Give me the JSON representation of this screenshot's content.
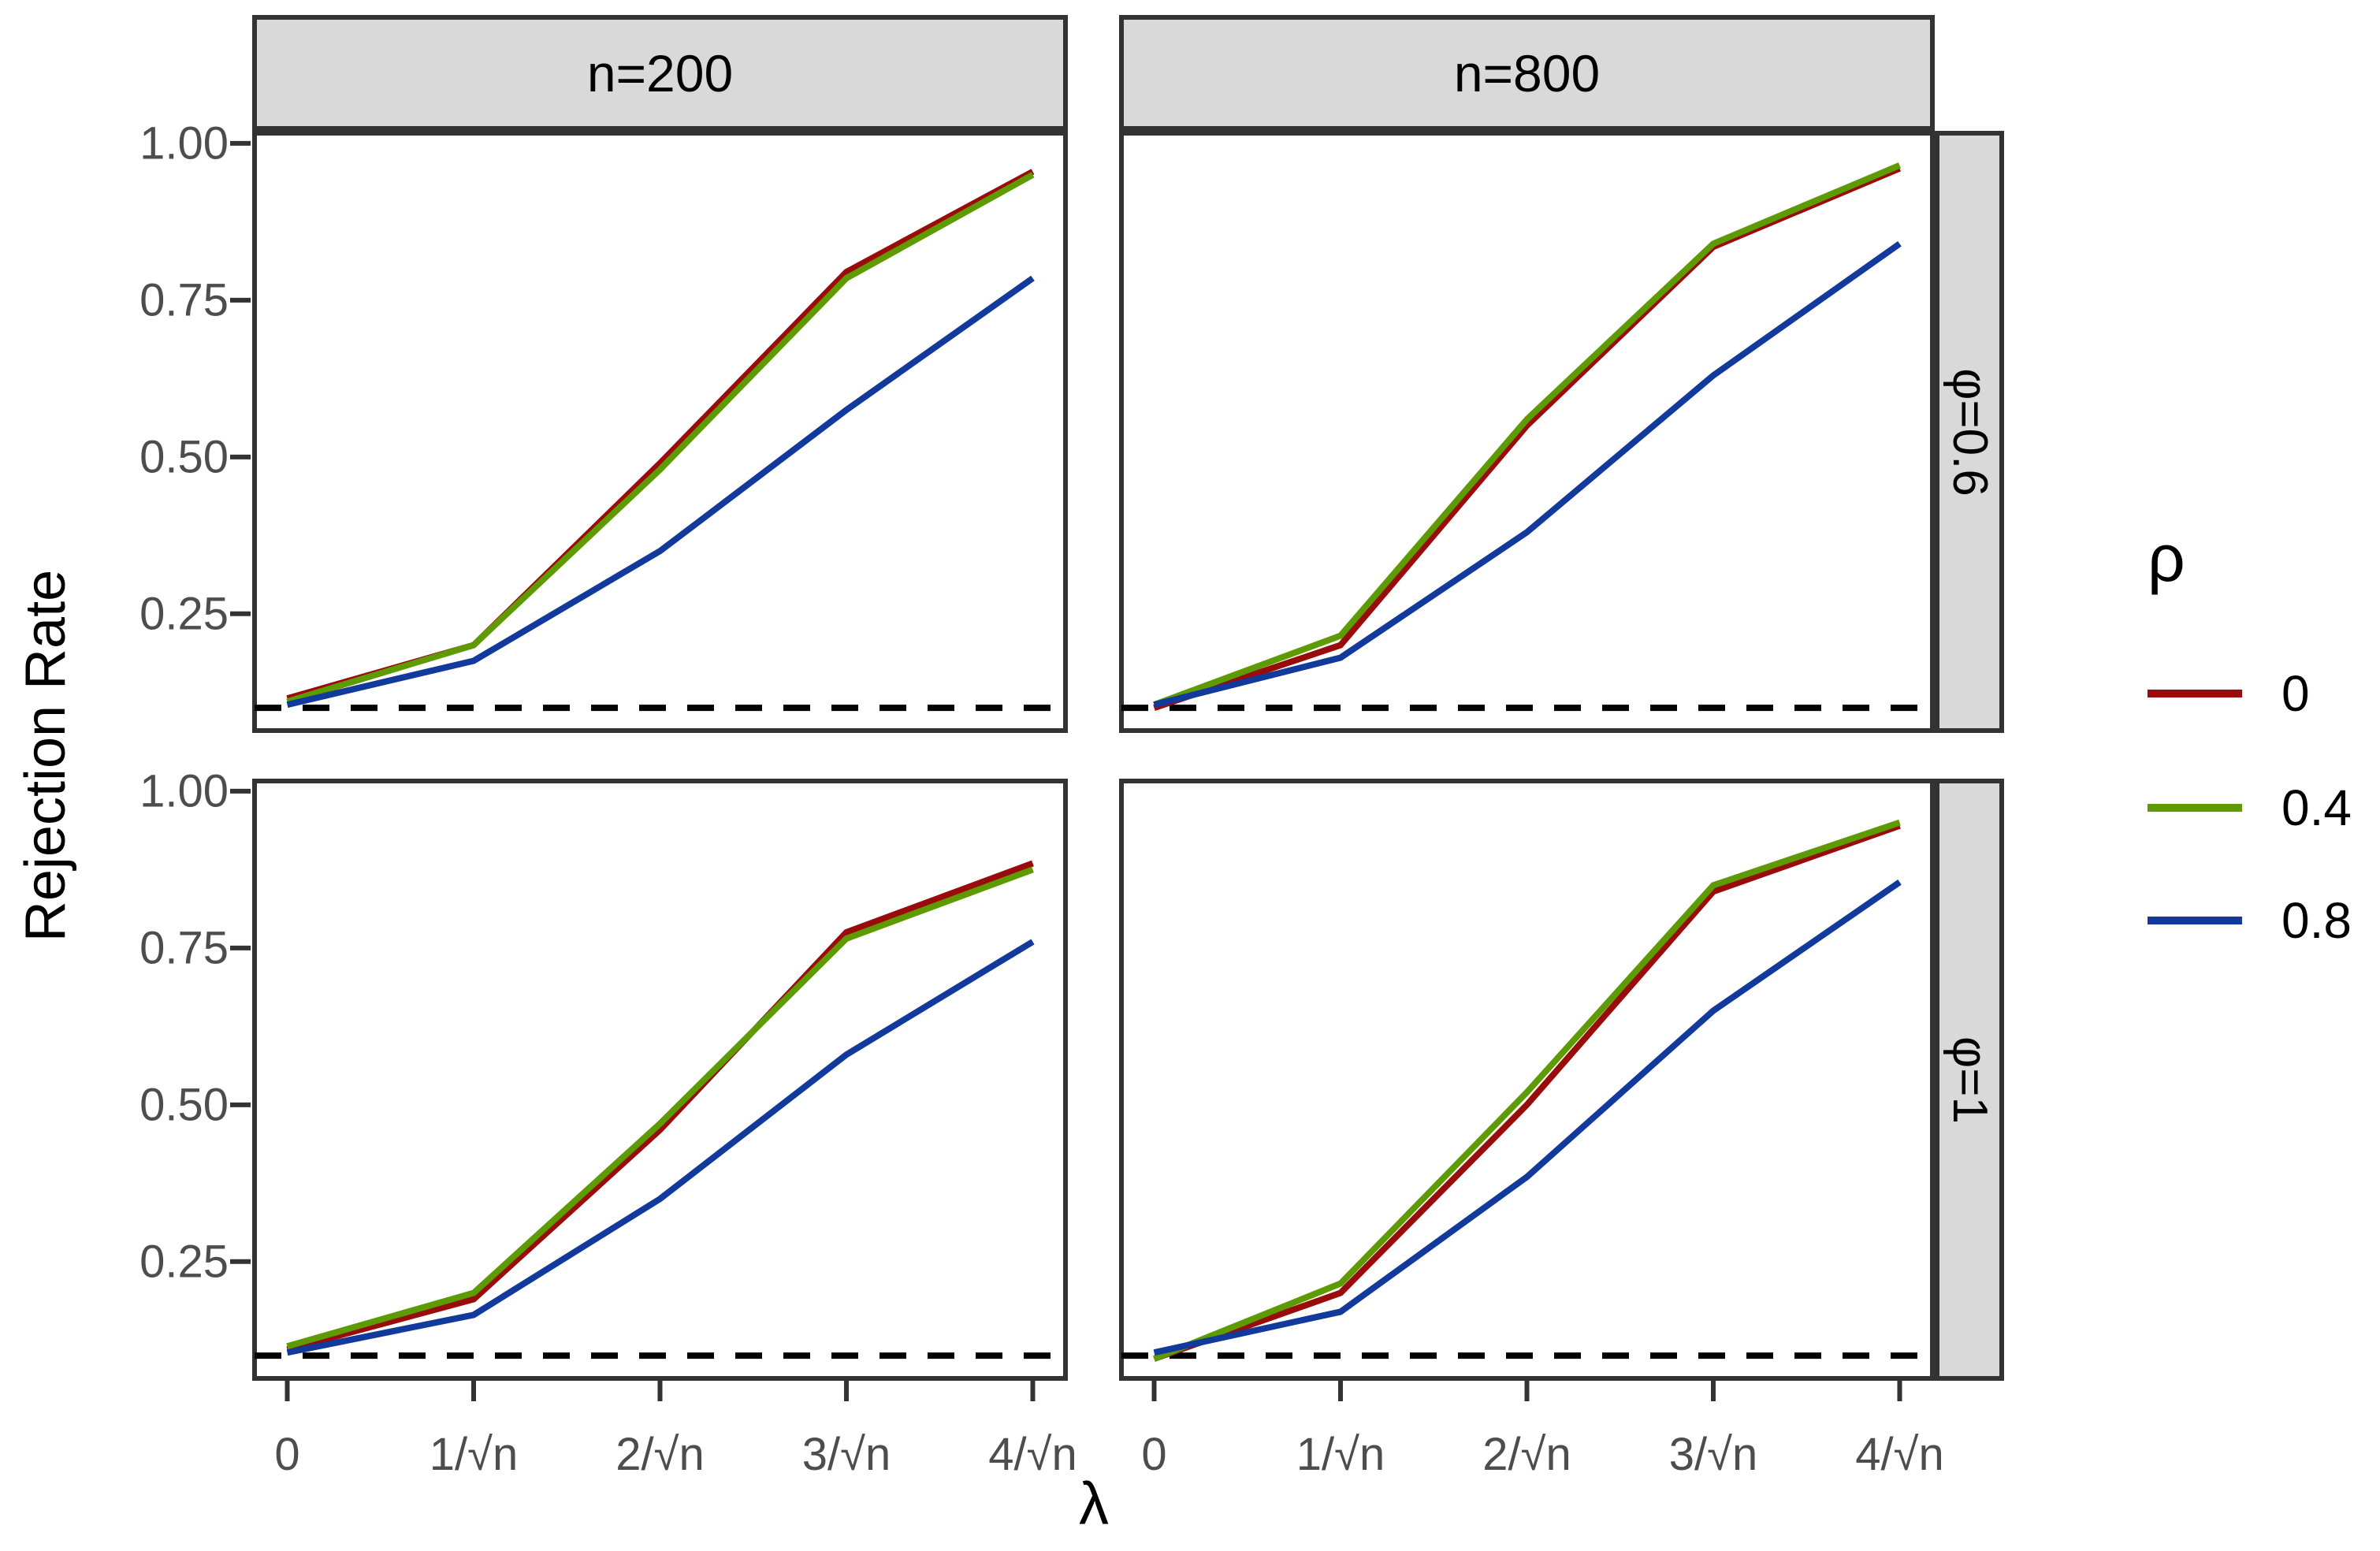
{
  "chart_data": {
    "type": "line",
    "title": "",
    "xlabel": "λ",
    "ylabel": "Rejection Rate",
    "x_tick_labels": [
      "0",
      "1/√n",
      "2/√n",
      "3/√n",
      "4/√n"
    ],
    "x_values": [
      0,
      1,
      2,
      3,
      4
    ],
    "y_ticks": [
      1.0,
      0.75,
      0.5,
      0.25
    ],
    "y_tick_labels": [
      "1.00",
      "0.75",
      "0.50",
      "0.25"
    ],
    "ylim": [
      0.06,
      1.02
    ],
    "grid": "off",
    "reference_line": {
      "y": 0.1,
      "style": "dashed",
      "color": "#000000"
    },
    "facet_cols": [
      "n=200",
      "n=800"
    ],
    "facet_rows": [
      "φ=0.6",
      "φ=1"
    ],
    "legend": {
      "title": "ρ",
      "position": "right",
      "entries": [
        {
          "label": "0",
          "color": "#9A0B0B"
        },
        {
          "label": "0.4",
          "color": "#5E9B03"
        },
        {
          "label": "0.8",
          "color": "#123A9D"
        }
      ]
    },
    "panels": [
      {
        "col": "n=200",
        "row": "φ=0.6",
        "series": [
          {
            "name": "0",
            "values": [
              0.115,
              0.2,
              0.49,
              0.795,
              0.955
            ]
          },
          {
            "name": "0.4",
            "values": [
              0.11,
              0.2,
              0.48,
              0.785,
              0.95
            ]
          },
          {
            "name": "0.8",
            "values": [
              0.105,
              0.175,
              0.35,
              0.575,
              0.785
            ]
          }
        ]
      },
      {
        "col": "n=800",
        "row": "φ=0.6",
        "series": [
          {
            "name": "0",
            "values": [
              0.1,
              0.2,
              0.55,
              0.835,
              0.96
            ]
          },
          {
            "name": "0.4",
            "values": [
              0.105,
              0.215,
              0.56,
              0.84,
              0.965
            ]
          },
          {
            "name": "0.8",
            "values": [
              0.105,
              0.18,
              0.38,
              0.63,
              0.84
            ]
          }
        ]
      },
      {
        "col": "n=200",
        "row": "φ=1",
        "series": [
          {
            "name": "0",
            "values": [
              0.11,
              0.19,
              0.46,
              0.775,
              0.885
            ]
          },
          {
            "name": "0.4",
            "values": [
              0.115,
              0.2,
              0.47,
              0.765,
              0.875
            ]
          },
          {
            "name": "0.8",
            "values": [
              0.105,
              0.165,
              0.35,
              0.58,
              0.76
            ]
          }
        ]
      },
      {
        "col": "n=800",
        "row": "φ=1",
        "series": [
          {
            "name": "0",
            "values": [
              0.095,
              0.2,
              0.5,
              0.84,
              0.945
            ]
          },
          {
            "name": "0.4",
            "values": [
              0.095,
              0.215,
              0.52,
              0.85,
              0.95
            ]
          },
          {
            "name": "0.8",
            "values": [
              0.105,
              0.17,
              0.385,
              0.65,
              0.855
            ]
          }
        ]
      }
    ],
    "colors": {
      "strip_bg": "#D9D9D9",
      "panel_border": "#333333",
      "tick_text": "#4D4D4D",
      "axis_text": "#000000",
      "background": "#FFFFFF"
    }
  }
}
